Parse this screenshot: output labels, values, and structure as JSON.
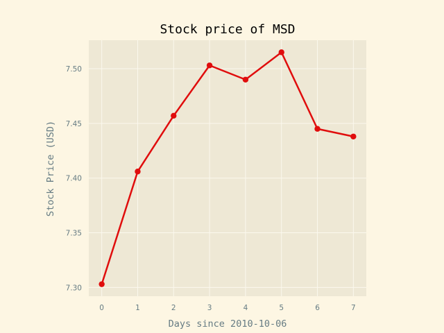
{
  "chart_data": {
    "type": "line",
    "title": "Stock price of MSD",
    "xlabel": "Days since 2010-10-06",
    "ylabel": "Stock Price (USD)",
    "x": [
      0,
      1,
      2,
      3,
      4,
      5,
      6,
      7
    ],
    "xticks": [
      "0",
      "1",
      "2",
      "3",
      "4",
      "5",
      "6",
      "7"
    ],
    "yticks": [
      "7.30",
      "7.35",
      "7.40",
      "7.45",
      "7.50"
    ],
    "xlim": [
      -0.36,
      7.36
    ],
    "ylim": [
      7.292,
      7.526
    ],
    "series": [
      {
        "values": [
          7.303,
          7.406,
          7.457,
          7.503,
          7.49,
          7.515,
          7.445,
          7.438
        ]
      }
    ],
    "grid": true,
    "colors": {
      "line": "#e00d0d",
      "plot_background": "#eee8d5",
      "figure_background": "#fdf6e3",
      "grid": "#fbf8ee",
      "text": "#657b83"
    }
  }
}
